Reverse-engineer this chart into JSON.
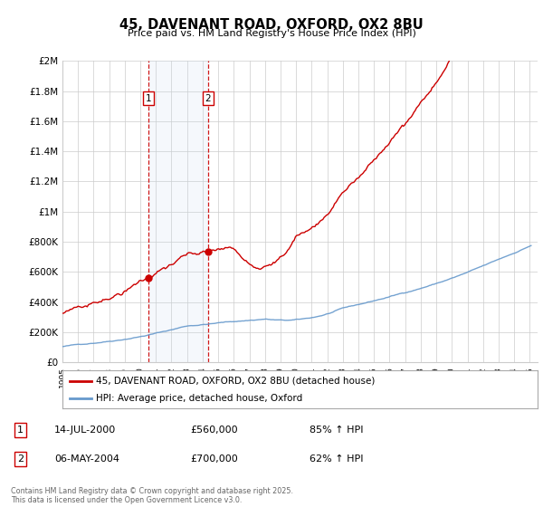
{
  "title": "45, DAVENANT ROAD, OXFORD, OX2 8BU",
  "subtitle": "Price paid vs. HM Land Registry's House Price Index (HPI)",
  "address_label": "45, DAVENANT ROAD, OXFORD, OX2 8BU (detached house)",
  "hpi_label": "HPI: Average price, detached house, Oxford",
  "transaction1_date": "14-JUL-2000",
  "transaction1_price": "£560,000",
  "transaction1_hpi": "85% ↑ HPI",
  "transaction2_date": "06-MAY-2004",
  "transaction2_price": "£700,000",
  "transaction2_hpi": "62% ↑ HPI",
  "red_line_color": "#cc0000",
  "blue_line_color": "#6699cc",
  "shaded_region_color": "#ddeeff",
  "vline_color": "#cc0000",
  "footer_text": "Contains HM Land Registry data © Crown copyright and database right 2025.\nThis data is licensed under the Open Government Licence v3.0.",
  "ylim": [
    0,
    2000000
  ],
  "yticks": [
    0,
    200000,
    400000,
    600000,
    800000,
    1000000,
    1200000,
    1400000,
    1600000,
    1800000,
    2000000
  ],
  "ylabel_texts": [
    "£0",
    "£200K",
    "£400K",
    "£600K",
    "£800K",
    "£1M",
    "£1.2M",
    "£1.4M",
    "£1.6M",
    "£1.8M",
    "£2M"
  ],
  "start_year": 1995,
  "end_year": 2025,
  "background_color": "#ffffff",
  "grid_color": "#cccccc",
  "t1_year": 2000.542,
  "t2_year": 2004.333,
  "t1_red_val": 560000,
  "t2_red_val": 700000
}
